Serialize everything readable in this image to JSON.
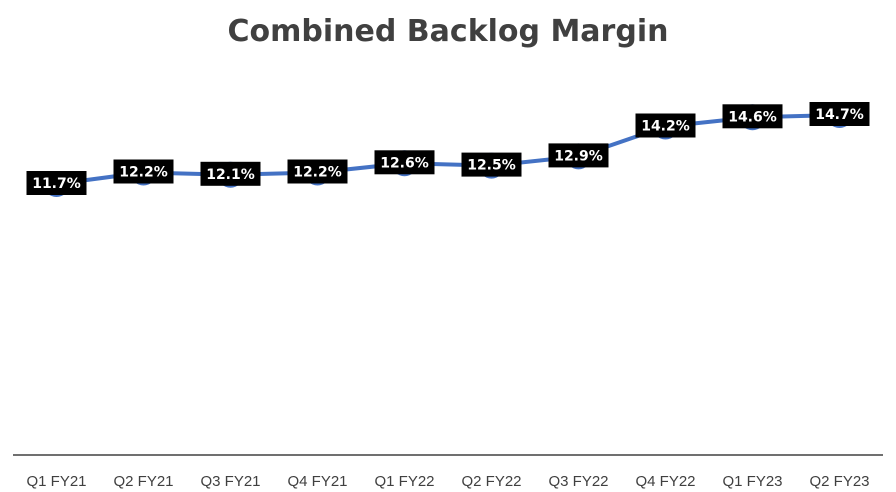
{
  "chart_data": {
    "type": "line",
    "title": "Combined Backlog Margin",
    "categories": [
      "Q1 FY21",
      "Q2 FY21",
      "Q3 FY21",
      "Q4 FY21",
      "Q1 FY22",
      "Q2 FY22",
      "Q3 FY22",
      "Q4 FY22",
      "Q1 FY23",
      "Q2 FY23"
    ],
    "series": [
      {
        "values": [
          11.7,
          12.2,
          12.1,
          12.2,
          12.6,
          12.5,
          12.9,
          14.2,
          14.6,
          14.7
        ],
        "labels": [
          "11.7%",
          "12.2%",
          "12.1%",
          "12.2%",
          "12.6%",
          "12.5%",
          "12.9%",
          "14.2%",
          "14.6%",
          "14.7%"
        ],
        "color": "#4472C4"
      }
    ],
    "xlabel": "",
    "ylabel": "",
    "grid": false,
    "legend": "none",
    "data_label_background": "#000000",
    "data_label_color": "#FFFFFF",
    "axis_color": "#404040"
  }
}
